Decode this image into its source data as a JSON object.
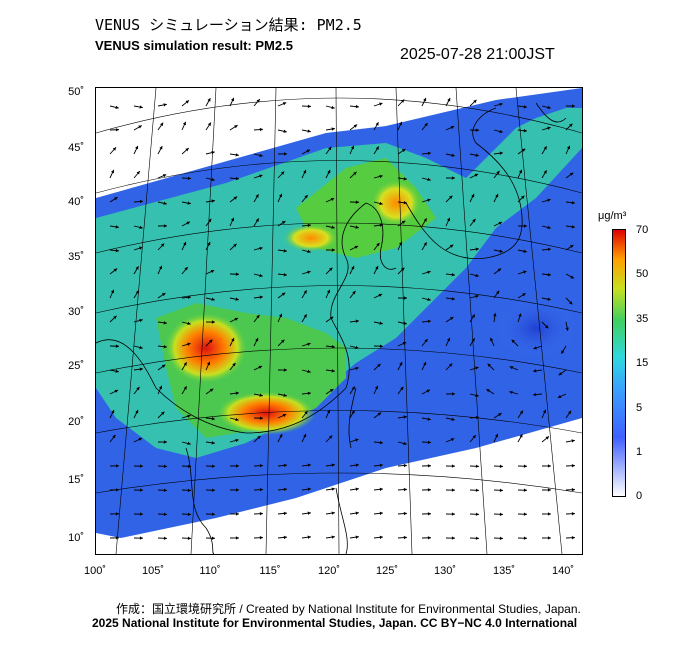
{
  "header": {
    "title_ja": "VENUS シミュレーション結果: PM2.5",
    "title_en": "VENUS simulation result: PM2.5",
    "timestamp": "2025-07-28 21:00JST"
  },
  "map": {
    "lat_ticks": [
      "50˚",
      "45˚",
      "40˚",
      "35˚",
      "30˚",
      "25˚",
      "20˚",
      "15˚",
      "10˚"
    ],
    "lon_ticks": [
      "100˚",
      "105˚",
      "110˚",
      "115˚",
      "120˚",
      "125˚",
      "130˚",
      "135˚",
      "140˚"
    ],
    "lat_range": [
      9,
      51
    ],
    "lon_range": [
      100,
      141
    ],
    "colors": {
      "ocean_high": "#3060e8",
      "ocean_low": "#2a4fd8",
      "land_green": "#3fc84a",
      "hotspot": "#e01010",
      "no_data": "#ffffff"
    },
    "icons": {
      "wind": "wind-arrow-icon"
    }
  },
  "colorbar": {
    "unit": "μg/m³",
    "labels": [
      "70",
      "50",
      "35",
      "15",
      "5",
      "1",
      "0"
    ]
  },
  "footer": {
    "credit_1": "作成：国立環境研究所 / Created by National Institute for Environmental Studies, Japan.",
    "credit_2": "2025 National Institute for Environmental Studies, Japan. CC BY−NC 4.0 International"
  }
}
